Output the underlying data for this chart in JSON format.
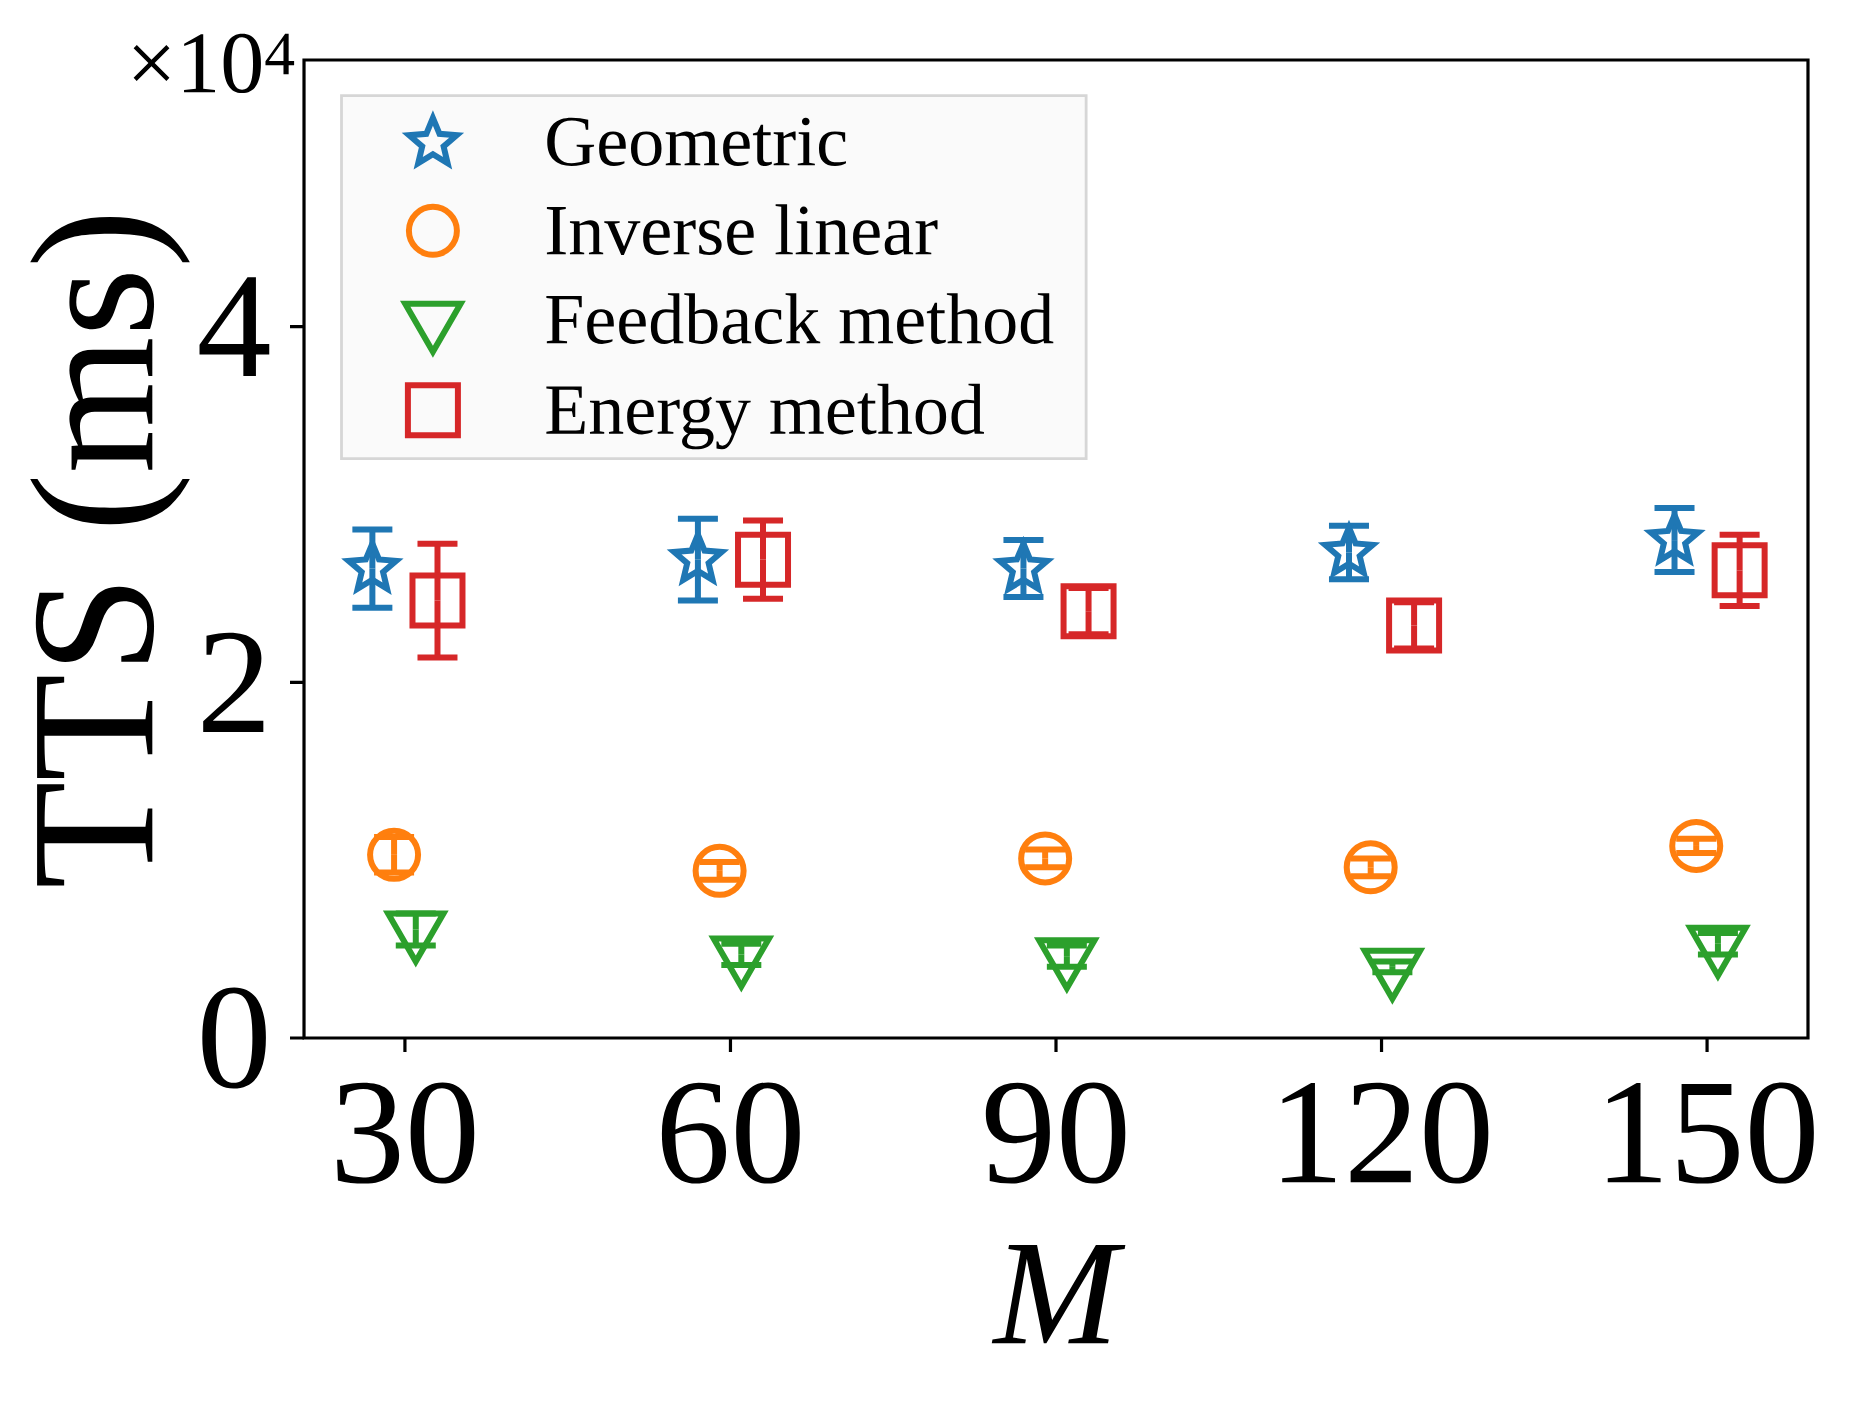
{
  "chart_data": {
    "type": "scatter",
    "xlabel": "M",
    "ylabel": "TTS (ms)",
    "annotations": [
      "×10$^{4}$"
    ],
    "xlim": [
      20.7,
      159.3
    ],
    "xticks": [
      30,
      60,
      90,
      120,
      150
    ],
    "ylim": [
      0,
      5.5
    ],
    "yticks": [
      0,
      2,
      4
    ],
    "legend": "top left",
    "series": [
      {
        "name": "Geometric",
        "color": "#1f77b4",
        "marker": "star",
        "x": [
          27,
          57,
          87,
          117,
          147
        ],
        "values": [
          2.64,
          2.69,
          2.64,
          2.73,
          2.8
        ],
        "errors": [
          0.22,
          0.23,
          0.16,
          0.15,
          0.18
        ]
      },
      {
        "name": "Inverse linear",
        "color": "#ff7f0e",
        "marker": "circle",
        "x": [
          29,
          59,
          89,
          119,
          149
        ],
        "values": [
          1.03,
          0.94,
          1.01,
          0.96,
          1.08
        ],
        "errors": [
          0.1,
          0.05,
          0.05,
          0.05,
          0.04
        ]
      },
      {
        "name": "Feedback method",
        "color": "#2ca02c",
        "marker": "triangle",
        "x": [
          31,
          61,
          91,
          121,
          151
        ],
        "values": [
          0.61,
          0.47,
          0.46,
          0.4,
          0.53
        ],
        "errors": [
          0.09,
          0.06,
          0.06,
          0.03,
          0.06
        ]
      },
      {
        "name": "Energy method",
        "color": "#d62728",
        "marker": "square",
        "x": [
          33,
          63,
          93,
          123,
          153
        ],
        "values": [
          2.46,
          2.69,
          2.4,
          2.32,
          2.63
        ],
        "errors": [
          0.32,
          0.22,
          0.13,
          0.13,
          0.2
        ]
      }
    ]
  }
}
